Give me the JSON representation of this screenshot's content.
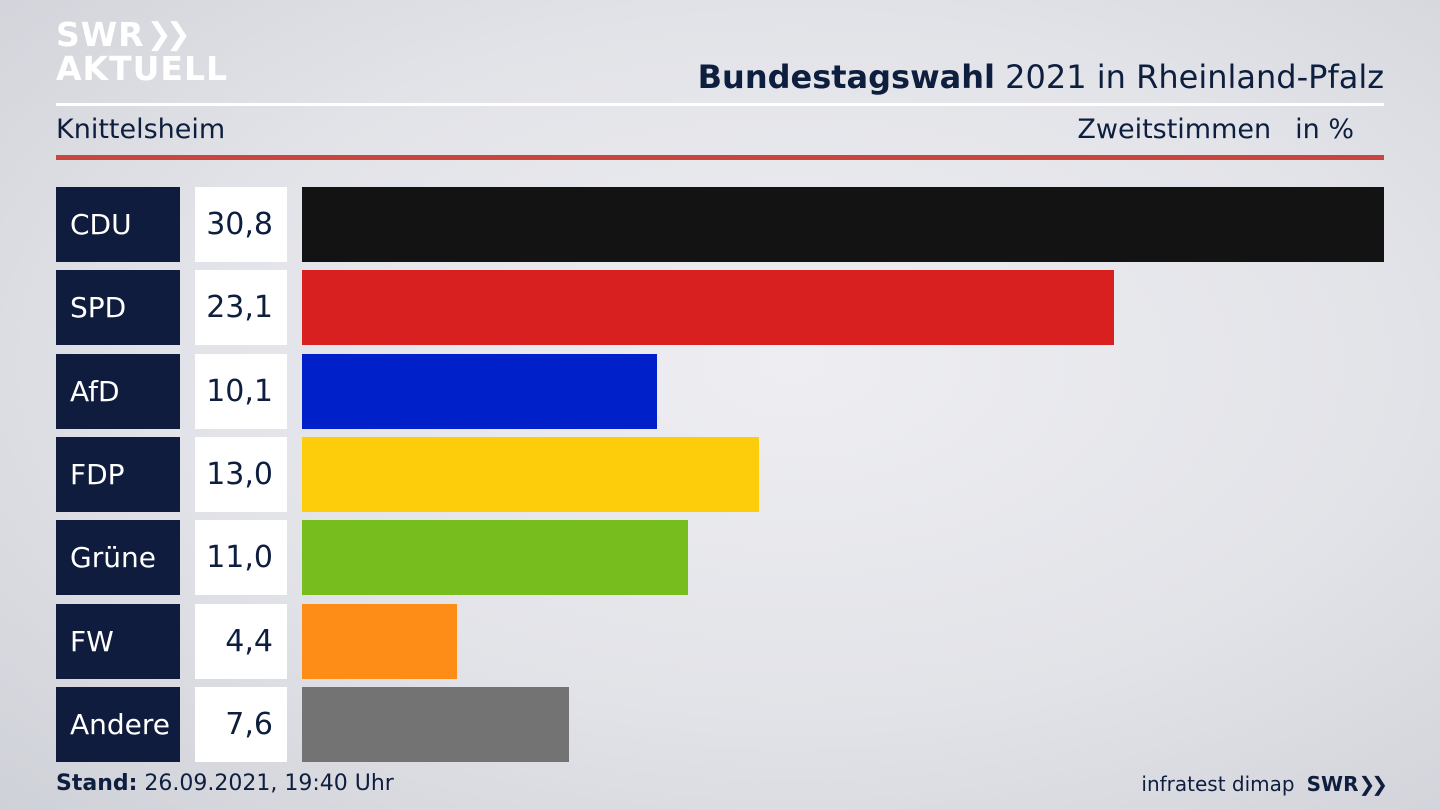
{
  "header": {
    "logo_line1": "SWR",
    "logo_line2": "AKTUELL",
    "title_bold": "Bundestagswahl",
    "title_rest": " 2021 in Rheinland-Pfalz",
    "subtitle": "Knittelsheim",
    "measure": "Zweitstimmen",
    "unit": "in %"
  },
  "colors": {
    "label_bg": "#0f1c3d",
    "rule_red": "#c8463d"
  },
  "chart_data": {
    "type": "bar",
    "orientation": "horizontal",
    "categories": [
      "CDU",
      "SPD",
      "AfD",
      "FDP",
      "Grüne",
      "FW",
      "Andere"
    ],
    "values": [
      30.8,
      23.1,
      10.1,
      13.0,
      11.0,
      4.4,
      7.6
    ],
    "value_labels": [
      "30,8",
      "23,1",
      "10,1",
      "13,0",
      "11,0",
      "4,4",
      "7,6"
    ],
    "colors": [
      "#131313",
      "#d82020",
      "#0021c9",
      "#fdcc0a",
      "#78bd1e",
      "#fe8d17",
      "#737373"
    ],
    "xlim": [
      0,
      30.8
    ],
    "grid": false,
    "legend": "none"
  },
  "footer": {
    "stand_label": "Stand:",
    "stand_value": " 26.09.2021, 19:40 Uhr",
    "source": "infratest dimap",
    "brand": "SWR"
  }
}
